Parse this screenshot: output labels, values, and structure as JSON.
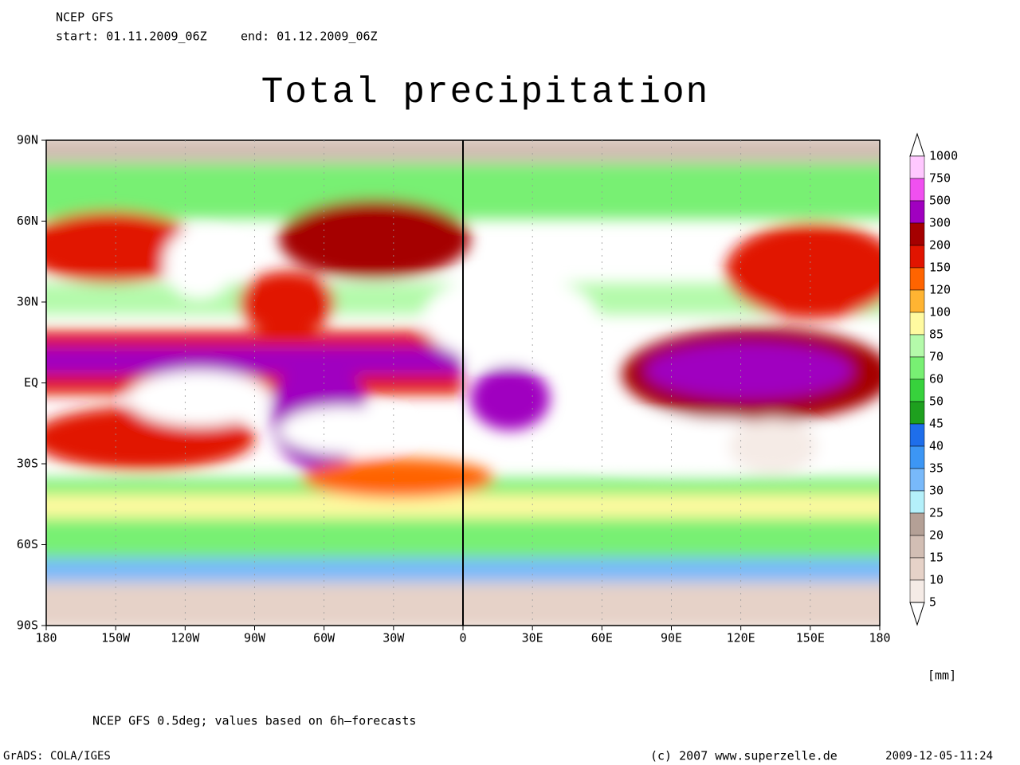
{
  "header": {
    "model": "NCEP GFS",
    "start": "start: 01.11.2009_06Z",
    "end": "end: 01.12.2009_06Z"
  },
  "title": "Total precipitation",
  "map": {
    "lon_labels": [
      "180",
      "150W",
      "120W",
      "90W",
      "60W",
      "30W",
      "0",
      "30E",
      "60E",
      "90E",
      "120E",
      "150E",
      "180"
    ],
    "lat_labels": [
      "90N",
      "60N",
      "30N",
      "EQ",
      "30S",
      "60S",
      "90S"
    ]
  },
  "colorbar": {
    "labels": [
      1000,
      750,
      500,
      300,
      200,
      150,
      120,
      100,
      85,
      70,
      60,
      50,
      45,
      40,
      35,
      30,
      25,
      20,
      15,
      10,
      5
    ],
    "colors": [
      "#ffffff",
      "#ffc8ff",
      "#f050f0",
      "#a000c0",
      "#a50000",
      "#e11400",
      "#ff6400",
      "#ffb432",
      "#fffaa0",
      "#b4faaa",
      "#78f073",
      "#37d23c",
      "#1ea01e",
      "#1e6eeb",
      "#3c96f5",
      "#78b9fa",
      "#b4f0fa",
      "#b4a096",
      "#d2beb4",
      "#e6d2c8",
      "#f5ebe6",
      "#ffffff"
    ],
    "unit": "[mm]"
  },
  "footer": {
    "note": "NCEP GFS 0.5deg; values based on 6h–forecasts",
    "software": "GrADS: COLA/IGES",
    "copyright": "(c) 2007 www.superzelle.de",
    "timestamp": "2009-12-05-11:24"
  }
}
